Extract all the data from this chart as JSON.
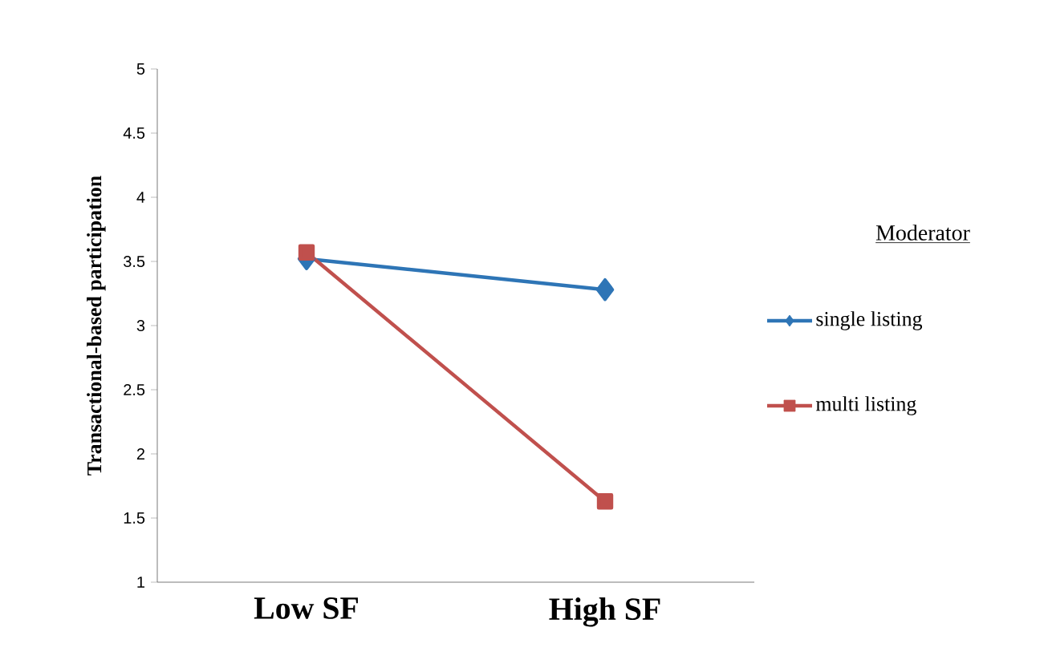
{
  "chart_data": {
    "type": "line",
    "ylabel": "Transactional-based  participation",
    "legend_title": "Moderator",
    "categories": [
      "Low SF",
      "High SF"
    ],
    "series": [
      {
        "name": "single listing",
        "color": "#2e75b6",
        "marker": "diamond",
        "values": [
          3.52,
          3.28
        ]
      },
      {
        "name": "multi listing",
        "color": "#c0504d",
        "marker": "square",
        "values": [
          3.57,
          1.63
        ]
      }
    ],
    "ylim": [
      1,
      5
    ],
    "yticks": [
      1,
      1.5,
      2,
      2.5,
      3,
      3.5,
      4,
      4.5,
      5
    ],
    "legend": "right",
    "grid": false
  }
}
